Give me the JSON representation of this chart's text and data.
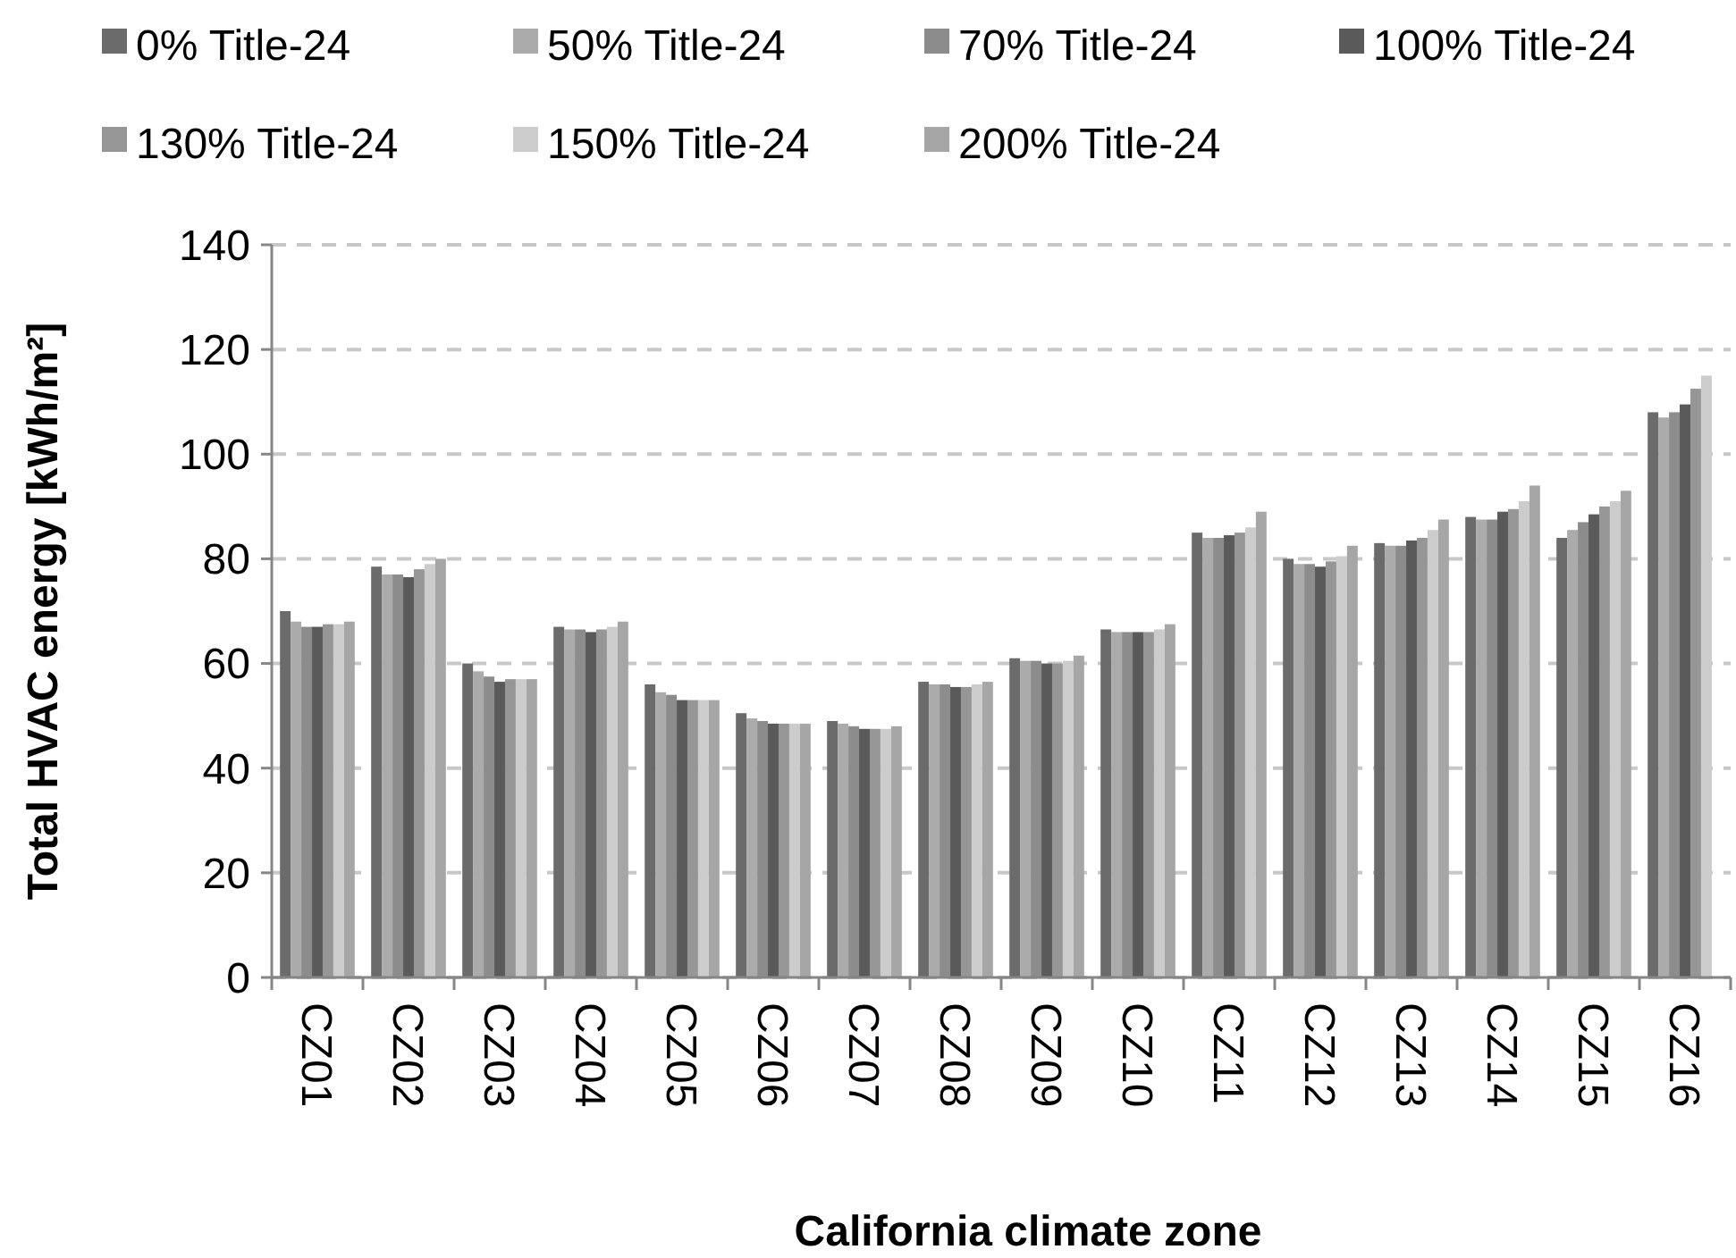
{
  "chart_data": {
    "type": "bar",
    "xlabel": "California climate zone",
    "ylabel": "Total HVAC energy [kWh/m²]",
    "categories": [
      "CZ01",
      "CZ02",
      "CZ03",
      "CZ04",
      "CZ05",
      "CZ06",
      "CZ07",
      "CZ08",
      "CZ09",
      "CZ10",
      "CZ11",
      "CZ12",
      "CZ13",
      "CZ14",
      "CZ15",
      "CZ16"
    ],
    "series": [
      {
        "name": "0% Title-24",
        "color": "#6b6b6b",
        "values": [
          70,
          78.5,
          60,
          67,
          56,
          50.5,
          49,
          56.5,
          61,
          66.5,
          85,
          80,
          83,
          88,
          84,
          108
        ]
      },
      {
        "name": "50% Title-24",
        "color": "#ababab",
        "values": [
          68,
          77,
          58.5,
          66.5,
          54.5,
          49.5,
          48.5,
          56,
          60.5,
          66,
          84,
          79,
          82.5,
          87.5,
          85.5,
          107
        ]
      },
      {
        "name": "70% Title-24",
        "color": "#8c8c8c",
        "values": [
          67,
          77,
          57.5,
          66.5,
          54,
          49,
          48,
          56,
          60.5,
          66,
          84,
          79,
          82.5,
          87.5,
          87,
          108
        ]
      },
      {
        "name": "100% Title-24",
        "color": "#5a5a5a",
        "values": [
          67,
          76.5,
          56.5,
          66,
          53,
          48.5,
          47.5,
          55.5,
          60,
          66,
          84.5,
          78.5,
          83.5,
          89,
          88.5,
          109.5
        ]
      },
      {
        "name": "130% Title-24",
        "color": "#969696",
        "values": [
          67.5,
          78,
          57,
          66.5,
          53,
          48.5,
          47.5,
          55.5,
          60,
          66,
          85,
          79.5,
          84,
          89.5,
          90,
          112.5
        ]
      },
      {
        "name": "150% Title-24",
        "color": "#cccccc",
        "values": [
          67.5,
          79,
          57,
          67,
          53,
          48.5,
          47.5,
          56,
          60.5,
          66.5,
          86,
          80.5,
          85.5,
          91,
          91,
          115
        ]
      },
      {
        "name": "200% Title-24",
        "color": "#a6a6a6",
        "values": [
          68,
          80,
          57,
          68,
          53,
          48.5,
          48,
          56.5,
          61.5,
          67.5,
          89,
          82.5,
          87.5,
          94,
          93,
          null
        ]
      }
    ],
    "ylim": [
      0,
      140
    ],
    "yticks": [
      0,
      20,
      40,
      60,
      80,
      100,
      120,
      140
    ],
    "grid": "y",
    "legend": "top"
  }
}
